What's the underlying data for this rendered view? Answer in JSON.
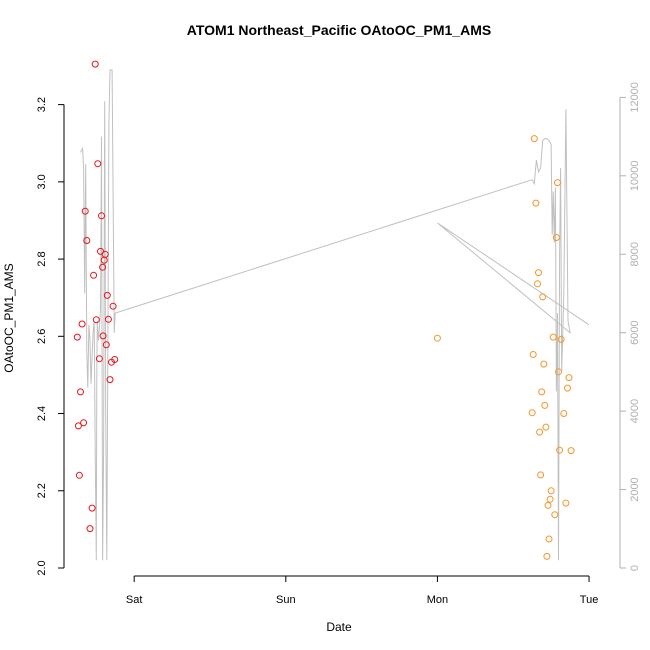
{
  "chart_data": {
    "type": "scatter",
    "title": "ATOM1 Northeast_Pacific OAtoOC_PM1_AMS",
    "xlabel": "Date",
    "ylabel": "OAtoOC_PM1_AMS",
    "x_axis": {
      "kind": "date",
      "range": [
        "2016-08-05T14:00",
        "2016-08-09T03:00"
      ],
      "ticks": [
        {
          "label": "Sat",
          "value": "2016-08-06T00:00"
        },
        {
          "label": "Sun",
          "value": "2016-08-07T00:00"
        },
        {
          "label": "Mon",
          "value": "2016-08-08T00:00"
        },
        {
          "label": "Tue",
          "value": "2016-08-09T00:00"
        }
      ]
    },
    "y_axis": {
      "range": [
        2.0,
        3.3
      ],
      "ticks": [
        2.0,
        2.2,
        2.4,
        2.6,
        2.8,
        3.0,
        3.2
      ]
    },
    "y2_axis": {
      "range": [
        0,
        12800
      ],
      "ticks": [
        0,
        2000,
        4000,
        6000,
        8000,
        10000,
        12000
      ],
      "color": "#b0b0b0"
    },
    "grid": false,
    "series": [
      {
        "color": "#e8141c",
        "points": [
          [
            "2016-08-05T15:00",
            2.598
          ],
          [
            "2016-08-05T15:10",
            2.368
          ],
          [
            "2016-08-05T15:20",
            2.24
          ],
          [
            "2016-08-05T15:30",
            2.456
          ],
          [
            "2016-08-05T15:45",
            2.632
          ],
          [
            "2016-08-05T16:00",
            2.376
          ],
          [
            "2016-08-05T16:15",
            2.924
          ],
          [
            "2016-08-05T16:30",
            2.848
          ],
          [
            "2016-08-05T17:00",
            2.102
          ],
          [
            "2016-08-05T17:20",
            2.155
          ],
          [
            "2016-08-05T17:35",
            2.758
          ],
          [
            "2016-08-05T17:50",
            3.305
          ],
          [
            "2016-08-05T18:00",
            2.643
          ],
          [
            "2016-08-05T18:15",
            3.047
          ],
          [
            "2016-08-05T18:30",
            2.542
          ],
          [
            "2016-08-05T18:40",
            2.82
          ],
          [
            "2016-08-05T18:50",
            2.912
          ],
          [
            "2016-08-05T19:00",
            2.779
          ],
          [
            "2016-08-05T19:05",
            2.601
          ],
          [
            "2016-08-05T19:15",
            2.797
          ],
          [
            "2016-08-05T19:25",
            2.812
          ],
          [
            "2016-08-05T19:35",
            2.578
          ],
          [
            "2016-08-05T19:45",
            2.706
          ],
          [
            "2016-08-05T19:55",
            2.644
          ],
          [
            "2016-08-05T20:10",
            2.488
          ],
          [
            "2016-08-05T20:25",
            2.533
          ],
          [
            "2016-08-05T20:40",
            2.678
          ],
          [
            "2016-08-05T20:55",
            2.54
          ]
        ]
      },
      {
        "color": "#f5962a",
        "points": [
          [
            "2016-08-08T00:00",
            2.595
          ],
          [
            "2016-08-08T15:00",
            2.402
          ],
          [
            "2016-08-08T15:10",
            2.553
          ],
          [
            "2016-08-08T15:20",
            3.112
          ],
          [
            "2016-08-08T15:35",
            2.945
          ],
          [
            "2016-08-08T15:50",
            2.736
          ],
          [
            "2016-08-08T16:00",
            2.765
          ],
          [
            "2016-08-08T16:10",
            2.352
          ],
          [
            "2016-08-08T16:20",
            2.241
          ],
          [
            "2016-08-08T16:30",
            2.456
          ],
          [
            "2016-08-08T16:40",
            2.702
          ],
          [
            "2016-08-08T16:50",
            2.528
          ],
          [
            "2016-08-08T17:00",
            2.421
          ],
          [
            "2016-08-08T17:10",
            2.365
          ],
          [
            "2016-08-08T17:20",
            2.03
          ],
          [
            "2016-08-08T17:30",
            2.162
          ],
          [
            "2016-08-08T17:40",
            2.075
          ],
          [
            "2016-08-08T17:50",
            2.178
          ],
          [
            "2016-08-08T18:00",
            2.2
          ],
          [
            "2016-08-08T18:20",
            2.598
          ],
          [
            "2016-08-08T18:35",
            2.138
          ],
          [
            "2016-08-08T18:50",
            2.856
          ],
          [
            "2016-08-08T19:00",
            2.998
          ],
          [
            "2016-08-08T19:10",
            2.508
          ],
          [
            "2016-08-08T19:20",
            2.305
          ],
          [
            "2016-08-08T19:35",
            2.592
          ],
          [
            "2016-08-08T20:00",
            2.4
          ],
          [
            "2016-08-08T20:20",
            2.168
          ],
          [
            "2016-08-08T20:35",
            2.466
          ],
          [
            "2016-08-08T20:50",
            2.493
          ],
          [
            "2016-08-08T21:10",
            2.304
          ]
        ]
      },
      {
        "axis": "y2",
        "color": "#c0c0c0",
        "type": "line",
        "points": [
          [
            "2016-08-05T15:30",
            10600
          ],
          [
            "2016-08-05T15:50",
            10700
          ],
          [
            "2016-08-05T16:00",
            10200
          ],
          [
            "2016-08-05T16:10",
            7000
          ],
          [
            "2016-08-05T16:20",
            10300
          ],
          [
            "2016-08-05T16:30",
            5500
          ],
          [
            "2016-08-05T16:40",
            4600
          ],
          [
            "2016-08-05T16:50",
            6200
          ],
          [
            "2016-08-05T17:00",
            5800
          ],
          [
            "2016-08-05T17:10",
            4700
          ],
          [
            "2016-08-05T17:20",
            5400
          ],
          [
            "2016-08-05T17:30",
            6000
          ],
          [
            "2016-08-05T17:40",
            6300
          ],
          [
            "2016-08-05T17:50",
            3000
          ],
          [
            "2016-08-05T18:00",
            200
          ],
          [
            "2016-08-05T18:05",
            5000
          ],
          [
            "2016-08-05T18:10",
            6300
          ],
          [
            "2016-08-05T18:20",
            5800
          ],
          [
            "2016-08-05T18:30",
            6100
          ],
          [
            "2016-08-05T18:40",
            6600
          ],
          [
            "2016-08-05T18:50",
            11000
          ],
          [
            "2016-08-05T19:00",
            200
          ],
          [
            "2016-08-05T19:10",
            3000
          ],
          [
            "2016-08-05T19:20",
            11900
          ],
          [
            "2016-08-05T19:30",
            4000
          ],
          [
            "2016-08-05T19:40",
            200
          ],
          [
            "2016-08-05T19:50",
            5800
          ],
          [
            "2016-08-05T20:00",
            11300
          ],
          [
            "2016-08-05T20:10",
            12700
          ],
          [
            "2016-08-05T20:30",
            12700
          ],
          [
            "2016-08-05T20:50",
            6000
          ],
          [
            "2016-08-05T21:00",
            6500
          ],
          [
            "2016-08-08T15:00",
            9900
          ],
          [
            "2016-08-08T15:20",
            9800
          ],
          [
            "2016-08-08T15:40",
            10400
          ],
          [
            "2016-08-08T16:00",
            10100
          ],
          [
            "2016-08-08T16:20",
            10200
          ],
          [
            "2016-08-08T16:40",
            10900
          ],
          [
            "2016-08-08T17:00",
            10950
          ],
          [
            "2016-08-08T17:20",
            10950
          ],
          [
            "2016-08-08T17:40",
            10900
          ],
          [
            "2016-08-08T18:00",
            10800
          ],
          [
            "2016-08-08T18:10",
            8500
          ],
          [
            "2016-08-08T18:20",
            9600
          ],
          [
            "2016-08-08T18:30",
            8300
          ],
          [
            "2016-08-08T18:40",
            9700
          ],
          [
            "2016-08-08T18:50",
            4500
          ],
          [
            "2016-08-08T19:00",
            6500
          ],
          [
            "2016-08-08T19:10",
            200
          ],
          [
            "2016-08-08T19:20",
            8000
          ],
          [
            "2016-08-08T19:30",
            10200
          ],
          [
            "2016-08-08T19:40",
            5000
          ],
          [
            "2016-08-08T20:00",
            7000
          ],
          [
            "2016-08-08T20:20",
            11700
          ],
          [
            "2016-08-08T20:40",
            6300
          ],
          [
            "2016-08-08T21:00",
            6000
          ],
          [
            "2016-08-08T00:00",
            8800
          ],
          [
            "2016-08-09T00:00",
            6200
          ]
        ]
      }
    ]
  }
}
